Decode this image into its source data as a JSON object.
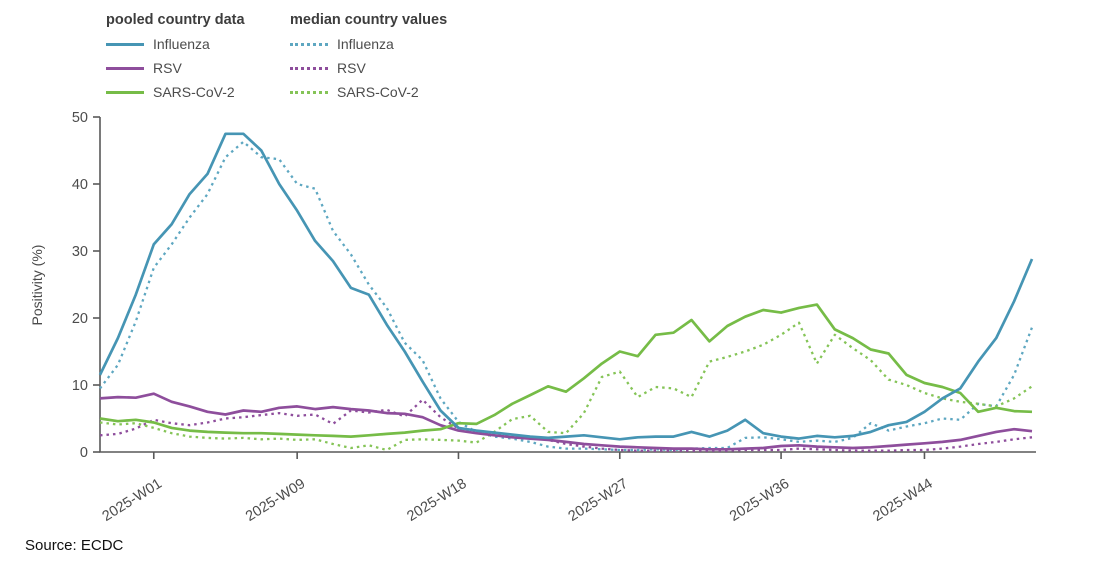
{
  "source": "Source: ECDC",
  "legend": {
    "pooled": {
      "header": "pooled country data",
      "items": [
        "Influenza",
        "RSV",
        "SARS-CoV-2"
      ]
    },
    "median": {
      "header": "median country values",
      "items": [
        "Influenza",
        "RSV",
        "SARS-CoV-2"
      ]
    }
  },
  "chart_data": {
    "type": "line",
    "title": "",
    "xlabel": "",
    "ylabel": "Positivity (%)",
    "ylim": [
      0,
      50
    ],
    "yticks": [
      0,
      10,
      20,
      30,
      40,
      50
    ],
    "x_tick_labels": [
      "2025-W01",
      "2025-W09",
      "2025-W18",
      "2025-W27",
      "2025-W36",
      "2025-W44"
    ],
    "grid": false,
    "legend_position": "top-left",
    "axis_color": "#595959",
    "tick_text_color": "#4c4c4c",
    "x": [
      "2024-W50",
      "2024-W51",
      "2024-W52",
      "2025-W01",
      "2025-W02",
      "2025-W03",
      "2025-W04",
      "2025-W05",
      "2025-W06",
      "2025-W07",
      "2025-W08",
      "2025-W09",
      "2025-W10",
      "2025-W11",
      "2025-W12",
      "2025-W13",
      "2025-W14",
      "2025-W15",
      "2025-W16",
      "2025-W17",
      "2025-W18",
      "2025-W19",
      "2025-W20",
      "2025-W21",
      "2025-W22",
      "2025-W23",
      "2025-W24",
      "2025-W25",
      "2025-W26",
      "2025-W27",
      "2025-W28",
      "2025-W29",
      "2025-W30",
      "2025-W31",
      "2025-W32",
      "2025-W33",
      "2025-W34",
      "2025-W35",
      "2025-W36",
      "2025-W37",
      "2025-W38",
      "2025-W39",
      "2025-W40",
      "2025-W41",
      "2025-W42",
      "2025-W43",
      "2025-W44",
      "2025-W45",
      "2025-W46",
      "2025-W47",
      "2025-W48",
      "2025-W49",
      "2025-W50"
    ],
    "series": [
      {
        "name": "Influenza (pooled country data)",
        "style": "solid",
        "color": "#4695b4",
        "values": [
          11.5,
          17,
          23.5,
          31,
          34,
          38.5,
          41.5,
          47.5,
          47.5,
          45,
          40,
          36,
          31.5,
          28.5,
          24.5,
          23.5,
          19,
          15,
          10.5,
          6.2,
          3.6,
          3.2,
          2.9,
          2.6,
          2.3,
          2.1,
          2.3,
          2.5,
          2.2,
          1.9,
          2.2,
          2.3,
          2.3,
          3,
          2.3,
          3.2,
          4.8,
          2.8,
          2.3,
          2,
          2.4,
          2.2,
          2.4,
          3,
          4,
          4.5,
          6,
          8,
          9.5,
          13.5,
          17,
          22.5,
          28.8
        ]
      },
      {
        "name": "RSV (pooled country data)",
        "style": "solid",
        "color": "#8e4e9c",
        "values": [
          8,
          8.2,
          8.1,
          8.7,
          7.5,
          6.8,
          6,
          5.6,
          6.2,
          6,
          6.6,
          6.8,
          6.4,
          6.7,
          6.4,
          6.2,
          5.8,
          5.7,
          5.2,
          4,
          3.2,
          2.8,
          2.5,
          2.2,
          2,
          1.8,
          1.5,
          1.2,
          1,
          0.8,
          0.7,
          0.6,
          0.5,
          0.5,
          0.4,
          0.4,
          0.5,
          0.6,
          0.9,
          1,
          0.8,
          0.7,
          0.6,
          0.7,
          0.9,
          1.1,
          1.3,
          1.5,
          1.8,
          2.4,
          3,
          3.4,
          3.1
        ]
      },
      {
        "name": "SARS-CoV-2 (pooled country data)",
        "style": "solid",
        "color": "#76bc47",
        "values": [
          5,
          4.6,
          4.8,
          4.4,
          3.6,
          3.2,
          3,
          2.9,
          2.8,
          2.8,
          2.7,
          2.6,
          2.5,
          2.4,
          2.3,
          2.5,
          2.7,
          2.9,
          3.2,
          3.4,
          4.3,
          4.2,
          5.5,
          7.2,
          8.5,
          9.8,
          9,
          11,
          13.2,
          15,
          14.3,
          17.5,
          17.8,
          19.7,
          16.5,
          18.8,
          20.2,
          21.2,
          20.8,
          21.5,
          22,
          18.3,
          17,
          15.3,
          14.7,
          11.5,
          10.3,
          9.7,
          8.8,
          6,
          6.6,
          6.1,
          6
        ]
      },
      {
        "name": "Influenza (median country values)",
        "style": "dotted",
        "color": "#5ea7c1",
        "values": [
          9.5,
          13,
          19.5,
          27.5,
          31,
          35,
          38.5,
          44,
          46.3,
          44,
          43.7,
          40,
          39.3,
          33,
          29.5,
          25,
          21.5,
          16.3,
          13.7,
          8,
          4.5,
          3,
          2.3,
          2,
          1.5,
          0.8,
          0.5,
          0.5,
          0.4,
          0.3,
          0.3,
          0.4,
          0.3,
          0.5,
          0.6,
          0.6,
          2.1,
          2.2,
          1.9,
          1.5,
          1.7,
          1.5,
          2.1,
          4.3,
          3.2,
          3.8,
          4.3,
          5,
          4.8,
          7.2,
          6.8,
          11.5,
          18.6
        ]
      },
      {
        "name": "RSV (median country values)",
        "style": "dotted",
        "color": "#8e4e9c",
        "values": [
          2.5,
          2.7,
          3.5,
          4.8,
          4.3,
          4,
          4.4,
          5,
          5.2,
          5.5,
          5.8,
          5.4,
          5.6,
          4.2,
          6.2,
          5.9,
          6.3,
          5.3,
          7.8,
          5.2,
          3.5,
          3,
          2.6,
          2.4,
          2.2,
          1.8,
          1.2,
          0.8,
          0.5,
          0.3,
          0.2,
          0.2,
          0.2,
          0.2,
          0.2,
          0.2,
          0.3,
          0.3,
          0.3,
          0.5,
          0.4,
          0.3,
          0.2,
          0.2,
          0.2,
          0.3,
          0.3,
          0.5,
          0.8,
          1.2,
          1.5,
          1.9,
          2.2
        ]
      },
      {
        "name": "SARS-CoV-2 (median country values)",
        "style": "dotted",
        "color": "#85c457",
        "values": [
          4.4,
          4.1,
          4.3,
          3.6,
          2.8,
          2.3,
          2.1,
          2,
          2.1,
          1.9,
          2,
          1.8,
          1.9,
          1.2,
          0.6,
          1,
          0.3,
          1.8,
          1.9,
          1.8,
          1.7,
          1.4,
          3,
          4.9,
          5.4,
          3,
          2.8,
          5.8,
          11.2,
          12,
          8.2,
          9.7,
          9.5,
          8.2,
          13.5,
          14.2,
          15,
          16,
          17.5,
          19.3,
          13.2,
          17.5,
          15.5,
          13.7,
          10.8,
          10,
          8.8,
          8,
          7.5,
          7.2,
          6.8,
          8,
          9.8
        ]
      }
    ]
  }
}
